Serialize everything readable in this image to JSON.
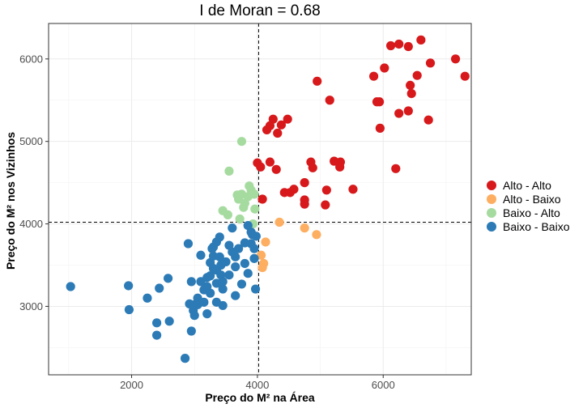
{
  "chart_data": {
    "type": "scatter",
    "title": "I de Moran = 0.68",
    "xlabel": "Preço do M² na Área",
    "ylabel": "Preço do M² nos Vizinhos",
    "xlim": [
      680,
      7400
    ],
    "ylim": [
      2170,
      6430
    ],
    "xticks": [
      2000,
      4000,
      6000
    ],
    "yticks": [
      3000,
      4000,
      5000,
      6000
    ],
    "xtick_labels": [
      "2000",
      "4000",
      "6000"
    ],
    "ytick_labels": [
      "3000",
      "4000",
      "5000",
      "6000"
    ],
    "mean_x": 4020,
    "mean_y": 4020,
    "grid": true,
    "legend_position": "right",
    "series": [
      {
        "name": "Alto - Alto",
        "color": "#d7191c",
        "points": [
          [
            6600,
            6230
          ],
          [
            6250,
            6180
          ],
          [
            6120,
            6160
          ],
          [
            6400,
            6150
          ],
          [
            7150,
            6000
          ],
          [
            6750,
            5950
          ],
          [
            6020,
            5890
          ],
          [
            7300,
            5790
          ],
          [
            5850,
            5790
          ],
          [
            6540,
            5800
          ],
          [
            6430,
            5680
          ],
          [
            4950,
            5730
          ],
          [
            6450,
            5580
          ],
          [
            5900,
            5480
          ],
          [
            5940,
            5480
          ],
          [
            5150,
            5500
          ],
          [
            6250,
            5340
          ],
          [
            6400,
            5370
          ],
          [
            6720,
            5260
          ],
          [
            4250,
            5270
          ],
          [
            4200,
            5190
          ],
          [
            4480,
            5270
          ],
          [
            4380,
            5200
          ],
          [
            4150,
            5140
          ],
          [
            4320,
            5100
          ],
          [
            5950,
            5160
          ],
          [
            4000,
            4740
          ],
          [
            4050,
            4690
          ],
          [
            4200,
            4750
          ],
          [
            4300,
            4660
          ],
          [
            4850,
            4750
          ],
          [
            4880,
            4680
          ],
          [
            5220,
            4760
          ],
          [
            5320,
            4750
          ],
          [
            5310,
            4690
          ],
          [
            6200,
            4670
          ],
          [
            4750,
            4500
          ],
          [
            4580,
            4420
          ],
          [
            4520,
            4380
          ],
          [
            4430,
            4380
          ],
          [
            4750,
            4290
          ],
          [
            5100,
            4410
          ],
          [
            5520,
            4420
          ],
          [
            4080,
            4300
          ],
          [
            4750,
            4240
          ],
          [
            5080,
            4230
          ]
        ]
      },
      {
        "name": "Alto - Baixo",
        "color": "#fdae61",
        "points": [
          [
            4350,
            4020
          ],
          [
            4750,
            3950
          ],
          [
            4940,
            3870
          ],
          [
            4130,
            3780
          ],
          [
            4060,
            3620
          ],
          [
            4100,
            3520
          ],
          [
            4080,
            3470
          ]
        ]
      },
      {
        "name": "Baixo - Alto",
        "color": "#a6dba0",
        "points": [
          [
            3750,
            5000
          ],
          [
            3550,
            4640
          ],
          [
            3870,
            4460
          ],
          [
            3900,
            4410
          ],
          [
            3680,
            4350
          ],
          [
            3750,
            4360
          ],
          [
            3850,
            4330
          ],
          [
            3950,
            4360
          ],
          [
            3700,
            4300
          ],
          [
            3800,
            4250
          ],
          [
            3780,
            4200
          ],
          [
            3960,
            4180
          ],
          [
            3450,
            4160
          ],
          [
            3530,
            4110
          ],
          [
            3720,
            4060
          ],
          [
            3930,
            4000
          ]
        ]
      },
      {
        "name": "Baixo - Baixo",
        "color": "#2c7bb6",
        "points": [
          [
            1030,
            3240
          ],
          [
            1950,
            3250
          ],
          [
            1960,
            2960
          ],
          [
            2250,
            3100
          ],
          [
            2440,
            3220
          ],
          [
            2400,
            2800
          ],
          [
            2400,
            2650
          ],
          [
            2580,
            3340
          ],
          [
            2600,
            2820
          ],
          [
            2850,
            2370
          ],
          [
            2900,
            3760
          ],
          [
            2920,
            3030
          ],
          [
            2950,
            3300
          ],
          [
            2950,
            2700
          ],
          [
            2980,
            2950
          ],
          [
            3000,
            2890
          ],
          [
            3000,
            3020
          ],
          [
            3050,
            3020
          ],
          [
            3050,
            3100
          ],
          [
            3100,
            3620
          ],
          [
            3100,
            3300
          ],
          [
            3150,
            3200
          ],
          [
            3150,
            3050
          ],
          [
            3200,
            3350
          ],
          [
            3200,
            3240
          ],
          [
            3200,
            2910
          ],
          [
            3250,
            3530
          ],
          [
            3250,
            3370
          ],
          [
            3250,
            3160
          ],
          [
            3280,
            3700
          ],
          [
            3300,
            3720
          ],
          [
            3300,
            3610
          ],
          [
            3300,
            3460
          ],
          [
            3350,
            3780
          ],
          [
            3350,
            3440
          ],
          [
            3350,
            3280
          ],
          [
            3350,
            3050
          ],
          [
            3400,
            3840
          ],
          [
            3400,
            3600
          ],
          [
            3420,
            3500
          ],
          [
            3420,
            3380
          ],
          [
            3450,
            3300
          ],
          [
            3450,
            3210
          ],
          [
            3450,
            3010
          ],
          [
            3500,
            3540
          ],
          [
            3550,
            3740
          ],
          [
            3550,
            3380
          ],
          [
            3600,
            3660
          ],
          [
            3600,
            3950
          ],
          [
            3650,
            3600
          ],
          [
            3650,
            3480
          ],
          [
            3650,
            3130
          ],
          [
            3700,
            3700
          ],
          [
            3750,
            3270
          ],
          [
            3800,
            3770
          ],
          [
            3800,
            3520
          ],
          [
            3850,
            3400
          ],
          [
            3850,
            3980
          ],
          [
            3900,
            3900
          ],
          [
            3900,
            3760
          ],
          [
            3920,
            3870
          ],
          [
            3950,
            3700
          ],
          [
            3950,
            3580
          ],
          [
            3970,
            3210
          ],
          [
            3980,
            3850
          ]
        ]
      }
    ]
  }
}
